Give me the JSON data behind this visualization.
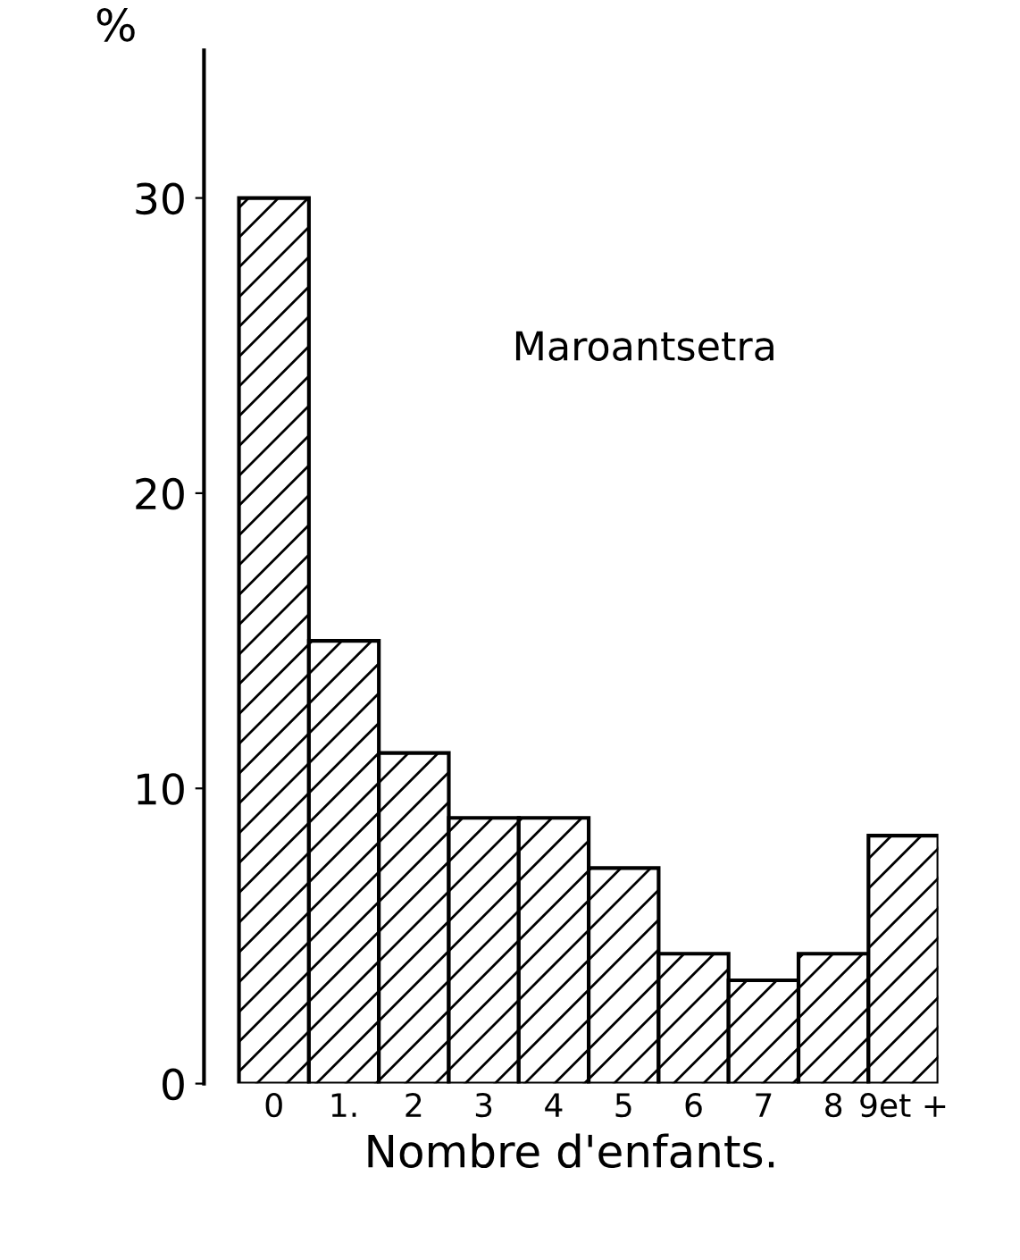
{
  "chart_data": {
    "type": "bar",
    "categories": [
      "0",
      "1.",
      "2",
      "3",
      "4",
      "5",
      "6",
      "7",
      "8",
      "9et +"
    ],
    "values": [
      30,
      15,
      11.2,
      9,
      9,
      7.3,
      4.4,
      3.5,
      4.4,
      8.4
    ],
    "color": "#000000",
    "ylabel": "%",
    "xlabel": "Nombre d'enfants.",
    "annotations": [
      "Maroantsetra"
    ],
    "ylim": [
      0,
      35
    ],
    "yticks": [
      0,
      10,
      20,
      30
    ],
    "grid": false,
    "legend": false
  }
}
